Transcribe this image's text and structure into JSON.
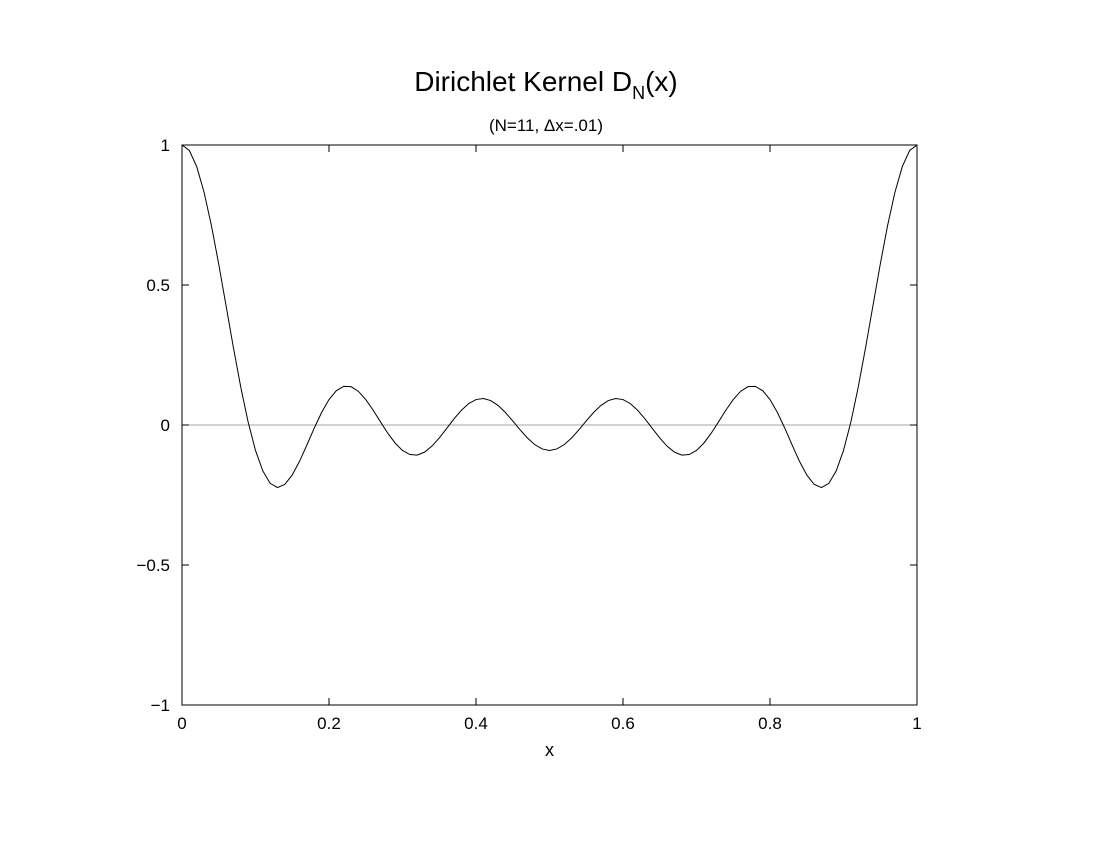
{
  "chart_data": {
    "type": "line",
    "title": {
      "main": "Dirichlet Kernel D",
      "subscript": "N",
      "suffix": "(x)"
    },
    "subtitle": "(N=11, Δx=.01)",
    "xlabel": "x",
    "ylabel": "",
    "xlim": [
      0,
      1
    ],
    "ylim": [
      -1,
      1
    ],
    "x_ticks": [
      {
        "value": 0,
        "label": "0"
      },
      {
        "value": 0.2,
        "label": "0.2"
      },
      {
        "value": 0.4,
        "label": "0.4"
      },
      {
        "value": 0.6,
        "label": "0.6"
      },
      {
        "value": 0.8,
        "label": "0.8"
      },
      {
        "value": 1,
        "label": "1"
      }
    ],
    "y_ticks": [
      {
        "value": -1,
        "label": "−1"
      },
      {
        "value": -0.5,
        "label": "−0.5"
      },
      {
        "value": 0,
        "label": "0"
      },
      {
        "value": 0.5,
        "label": "0.5"
      },
      {
        "value": 1,
        "label": "1"
      }
    ],
    "zero_line": true,
    "grid": false,
    "series": [
      {
        "N": 11,
        "dx": 0.01,
        "x_start": 0,
        "x_end": 1,
        "formula": "sin(N*pi*x) / (N*sin(pi*x))"
      }
    ],
    "colors": {
      "line": "#000000",
      "zero_line": "#888888",
      "frame": "#000000"
    }
  }
}
